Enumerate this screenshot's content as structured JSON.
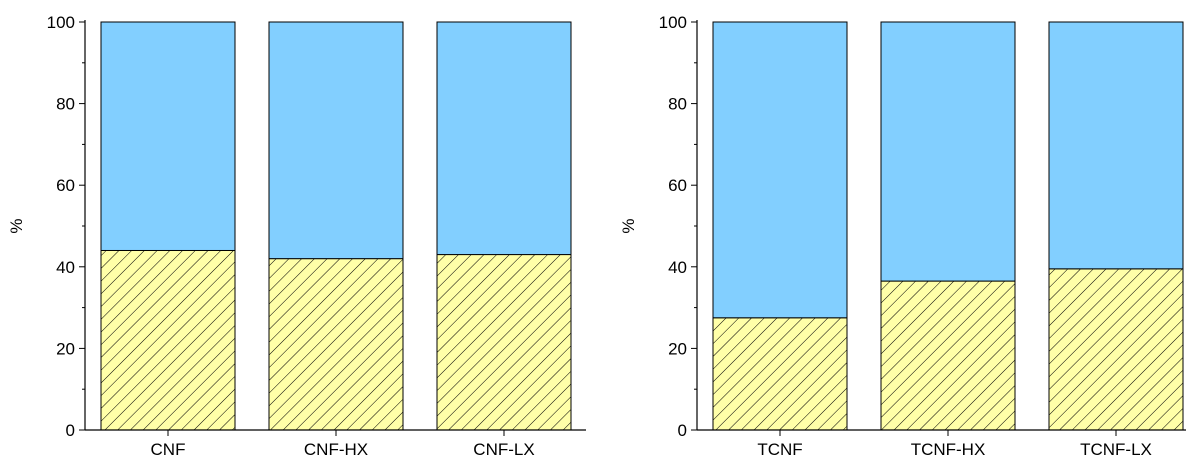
{
  "chart_data": [
    {
      "type": "bar",
      "stacked": true,
      "categories": [
        "CNF",
        "CNF-HX",
        "CNF-LX"
      ],
      "series": [
        {
          "values": [
            44,
            42,
            43
          ],
          "color": "#FFFFA8",
          "pattern": "diagonal-hatch"
        },
        {
          "values": [
            56,
            58,
            57
          ],
          "color": "#82CFFF"
        }
      ],
      "ylabel": "%",
      "ylim": [
        0,
        100
      ],
      "yticks": [
        "0",
        "20",
        "40",
        "60",
        "80",
        "100"
      ],
      "grid": false
    },
    {
      "type": "bar",
      "stacked": true,
      "categories": [
        "TCNF",
        "TCNF-HX",
        "TCNF-LX"
      ],
      "series": [
        {
          "values": [
            27.5,
            36.5,
            39.5
          ],
          "color": "#FFFFA8",
          "pattern": "diagonal-hatch"
        },
        {
          "values": [
            72.5,
            63.5,
            60.5
          ],
          "color": "#82CFFF"
        }
      ],
      "ylabel": "%",
      "ylim": [
        0,
        100
      ],
      "yticks": [
        "0",
        "20",
        "40",
        "60",
        "80",
        "100"
      ],
      "grid": false
    }
  ]
}
